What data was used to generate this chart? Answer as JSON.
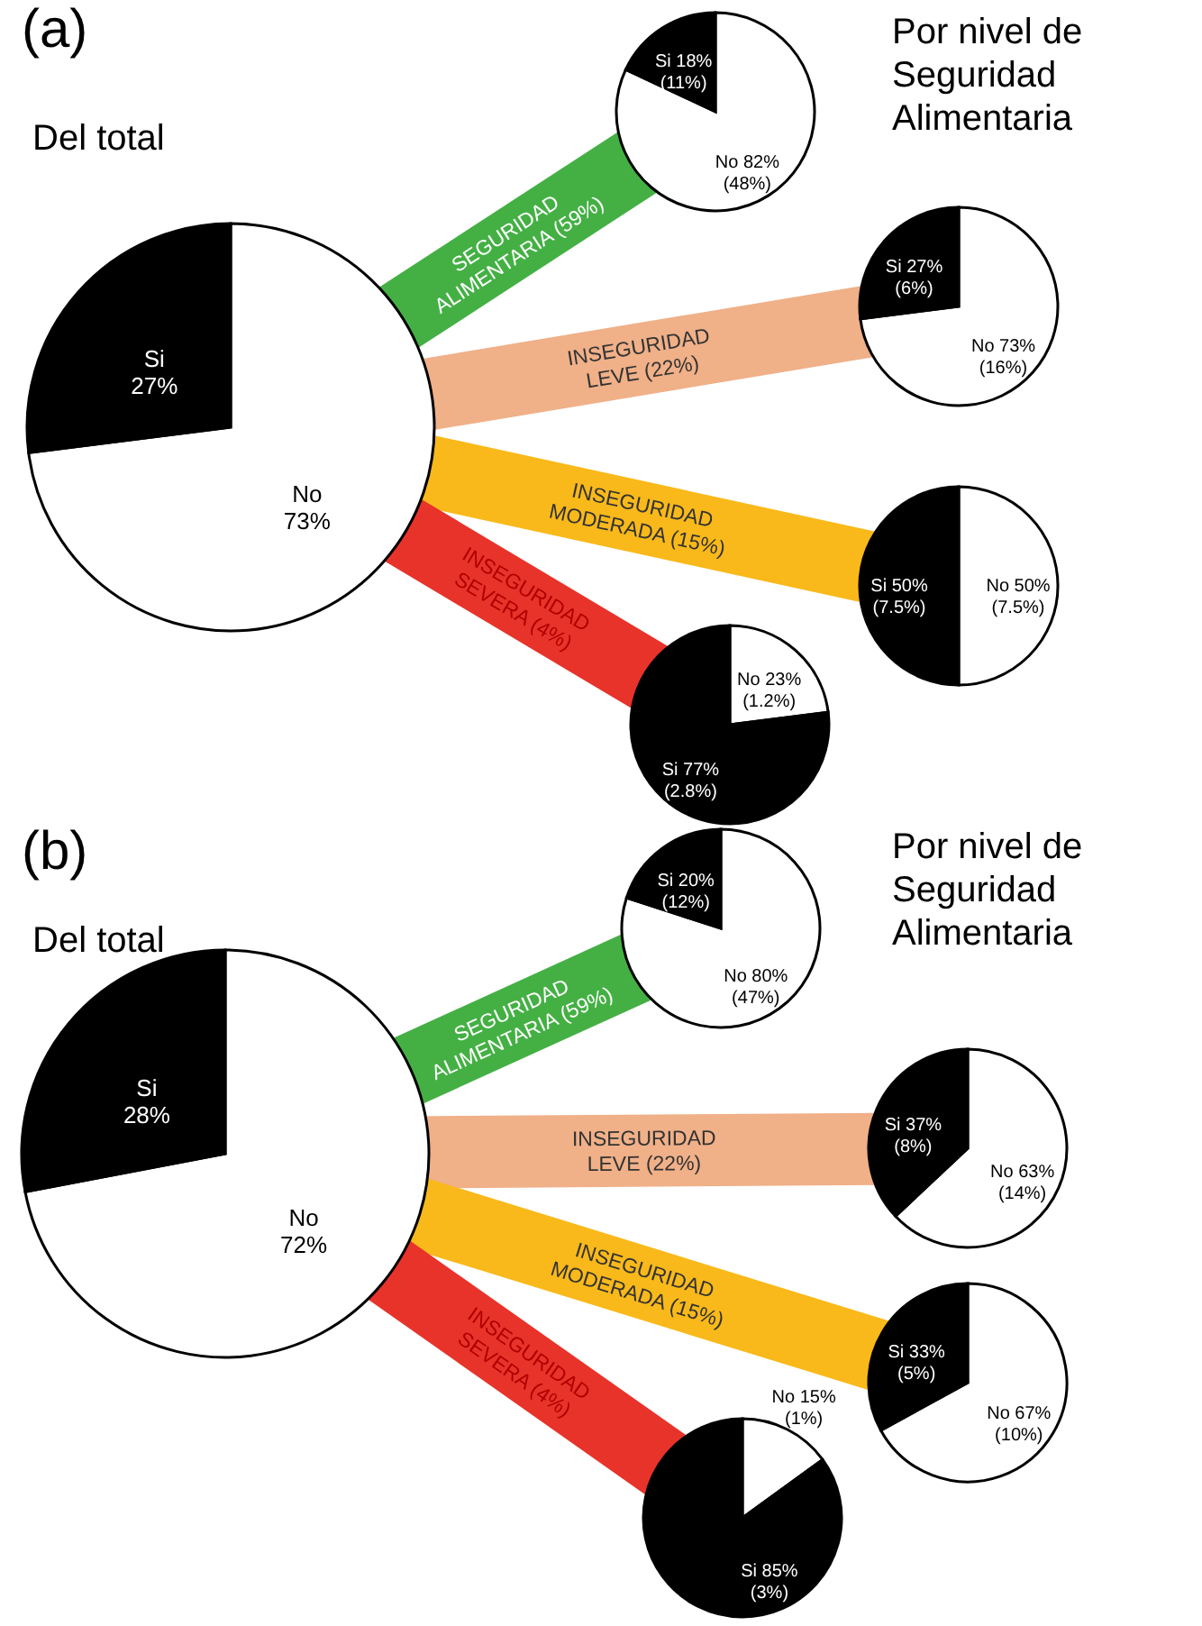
{
  "chart_data": [
    {
      "type": "pie",
      "title": "(a)",
      "subtitle": "Del total",
      "categories": [
        "No",
        "Si"
      ],
      "values": [
        73,
        27
      ],
      "colors": [
        "#ffffff",
        "#000000"
      ],
      "value_labels": [
        "73%",
        "27%"
      ]
    },
    {
      "type": "pie",
      "title": "SEGURIDAD ALIMENTARIA (59%)",
      "annotations": [
        "Por nivel de Seguridad Alimentaria"
      ],
      "categories": [
        "No",
        "Si"
      ],
      "values": [
        82,
        18
      ],
      "colors": [
        "#ffffff",
        "#000000"
      ],
      "value_labels": [
        "82% (48%)",
        "18% (11%)"
      ]
    },
    {
      "type": "pie",
      "title": "INSEGURIDAD LEVE (22%)",
      "categories": [
        "No",
        "Si"
      ],
      "values": [
        73,
        27
      ],
      "colors": [
        "#ffffff",
        "#000000"
      ],
      "value_labels": [
        "73% (16%)",
        "27% (6%)"
      ]
    },
    {
      "type": "pie",
      "title": "INSEGURIDAD MODERADA (15%)",
      "categories": [
        "No",
        "Si"
      ],
      "values": [
        50,
        50
      ],
      "colors": [
        "#ffffff",
        "#000000"
      ],
      "value_labels": [
        "50% (7.5%)",
        "50% (7.5%)"
      ]
    },
    {
      "type": "pie",
      "title": "INSEGURIDAD SEVERA (4%)",
      "categories": [
        "No",
        "Si"
      ],
      "values": [
        23,
        77
      ],
      "colors": [
        "#ffffff",
        "#000000"
      ],
      "value_labels": [
        "23% (1.2%)",
        "77% (2.8%)"
      ]
    },
    {
      "type": "pie",
      "title": "(b)",
      "subtitle": "Del total",
      "categories": [
        "No",
        "Si"
      ],
      "values": [
        72,
        28
      ],
      "colors": [
        "#ffffff",
        "#000000"
      ],
      "value_labels": [
        "72%",
        "28%"
      ]
    },
    {
      "type": "pie",
      "title": "SEGURIDAD ALIMENTARIA (59%)",
      "annotations": [
        "Por nivel de Seguridad Alimentaria"
      ],
      "categories": [
        "No",
        "Si"
      ],
      "values": [
        80,
        20
      ],
      "colors": [
        "#ffffff",
        "#000000"
      ],
      "value_labels": [
        "80% (47%)",
        "20% (12%)"
      ]
    },
    {
      "type": "pie",
      "title": "INSEGURIDAD LEVE (22%)",
      "categories": [
        "No",
        "Si"
      ],
      "values": [
        63,
        37
      ],
      "colors": [
        "#ffffff",
        "#000000"
      ],
      "value_labels": [
        "63% (14%)",
        "37% (8%)"
      ]
    },
    {
      "type": "pie",
      "title": "INSEGURIDAD MODERADA (15%)",
      "categories": [
        "No",
        "Si"
      ],
      "values": [
        67,
        33
      ],
      "colors": [
        "#ffffff",
        "#000000"
      ],
      "value_labels": [
        "67% (10%)",
        "33% (5%)"
      ]
    },
    {
      "type": "pie",
      "title": "INSEGURIDAD SEVERA (4%)",
      "categories": [
        "No",
        "Si"
      ],
      "values": [
        15,
        85
      ],
      "colors": [
        "#ffffff",
        "#000000"
      ],
      "value_labels": [
        "15% (1%)",
        "85% (3%)"
      ]
    }
  ]
}
